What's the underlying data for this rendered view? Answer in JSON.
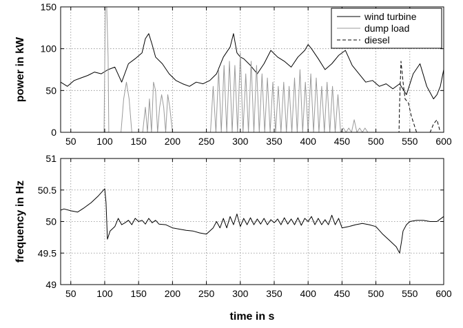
{
  "chart_data": [
    {
      "type": "line",
      "ylabel": "power in kW",
      "xlim": [
        35,
        600
      ],
      "ylim": [
        0,
        150
      ],
      "xticks": [
        50,
        100,
        150,
        200,
        250,
        300,
        350,
        400,
        450,
        500,
        550,
        600
      ],
      "yticks": [
        "0",
        "50",
        "100",
        "150"
      ],
      "grid": true,
      "legend": "top-right",
      "series": [
        {
          "name": "wind turbine",
          "color": "#000000",
          "style": "solid",
          "x": [
            35,
            45,
            55,
            65,
            75,
            85,
            95,
            105,
            115,
            125,
            135,
            145,
            155,
            160,
            165,
            170,
            175,
            185,
            195,
            205,
            215,
            225,
            235,
            245,
            255,
            265,
            275,
            285,
            290,
            295,
            300,
            305,
            315,
            325,
            335,
            345,
            355,
            365,
            375,
            385,
            395,
            400,
            405,
            415,
            425,
            435,
            445,
            455,
            465,
            475,
            485,
            495,
            505,
            515,
            525,
            535,
            545,
            555,
            565,
            575,
            585,
            590,
            595,
            600
          ],
          "y": [
            60,
            55,
            62,
            65,
            68,
            72,
            70,
            75,
            78,
            60,
            82,
            88,
            95,
            112,
            118,
            105,
            90,
            82,
            70,
            62,
            58,
            55,
            60,
            58,
            62,
            70,
            90,
            102,
            118,
            95,
            90,
            88,
            80,
            70,
            82,
            98,
            90,
            85,
            78,
            90,
            98,
            105,
            100,
            88,
            75,
            82,
            92,
            98,
            80,
            70,
            60,
            62,
            55,
            58,
            52,
            58,
            45,
            70,
            82,
            55,
            40,
            45,
            55,
            75
          ]
        },
        {
          "name": "dump load",
          "color": "#999999",
          "style": "solid",
          "x": [
            35,
            99,
            101,
            103,
            105,
            106,
            108,
            120,
            124,
            128,
            132,
            136,
            140,
            148,
            150,
            156,
            160,
            163,
            166,
            169,
            172,
            175,
            178,
            181,
            184,
            187,
            190,
            193,
            196,
            200,
            210,
            256,
            260,
            264,
            268,
            272,
            276,
            280,
            284,
            288,
            292,
            296,
            300,
            304,
            308,
            312,
            316,
            320,
            324,
            328,
            332,
            336,
            340,
            344,
            348,
            352,
            356,
            360,
            364,
            368,
            372,
            376,
            380,
            384,
            388,
            392,
            396,
            400,
            404,
            408,
            412,
            416,
            420,
            424,
            428,
            432,
            436,
            440,
            444,
            448,
            452,
            456,
            460,
            464,
            468,
            472,
            476,
            480,
            484,
            488,
            492,
            600
          ],
          "y": [
            0,
            0,
            150,
            150,
            90,
            0,
            0,
            0,
            0,
            40,
            60,
            40,
            0,
            0,
            0,
            0,
            30,
            0,
            40,
            0,
            60,
            50,
            0,
            30,
            45,
            30,
            0,
            45,
            30,
            0,
            0,
            0,
            55,
            0,
            75,
            0,
            80,
            0,
            85,
            0,
            80,
            0,
            95,
            0,
            70,
            0,
            85,
            0,
            80,
            0,
            70,
            0,
            65,
            0,
            60,
            0,
            55,
            0,
            60,
            0,
            55,
            0,
            65,
            0,
            75,
            0,
            60,
            0,
            70,
            0,
            65,
            0,
            55,
            0,
            60,
            0,
            55,
            0,
            45,
            0,
            5,
            0,
            5,
            0,
            15,
            0,
            5,
            0,
            5,
            0,
            0,
            0
          ]
        },
        {
          "name": "diesel",
          "color": "#000000",
          "style": "dashed",
          "x": [
            35,
            534,
            535,
            537,
            540,
            543,
            548,
            552,
            556,
            560,
            565,
            570,
            575,
            580,
            585,
            590,
            595,
            600
          ],
          "y": [
            0,
            0,
            35,
            85,
            60,
            40,
            35,
            20,
            10,
            0,
            0,
            0,
            0,
            0,
            10,
            15,
            0,
            0
          ]
        }
      ]
    },
    {
      "type": "line",
      "xlabel": "time in s",
      "ylabel": "frequency in Hz",
      "xlim": [
        35,
        600
      ],
      "ylim": [
        49,
        51
      ],
      "xticks": [
        50,
        100,
        150,
        200,
        250,
        300,
        350,
        400,
        450,
        500,
        550,
        600
      ],
      "yticks": [
        "49",
        "49.5",
        "50",
        "50.5",
        "51"
      ],
      "grid": true,
      "series": [
        {
          "color": "#000000",
          "style": "solid",
          "x": [
            35,
            40,
            50,
            60,
            70,
            80,
            90,
            100,
            102,
            104,
            108,
            115,
            120,
            125,
            130,
            135,
            140,
            145,
            150,
            155,
            160,
            165,
            170,
            175,
            180,
            190,
            200,
            210,
            220,
            230,
            240,
            250,
            255,
            260,
            265,
            270,
            275,
            280,
            285,
            290,
            295,
            300,
            305,
            310,
            315,
            320,
            325,
            330,
            335,
            340,
            345,
            350,
            355,
            360,
            365,
            370,
            375,
            380,
            385,
            390,
            395,
            400,
            405,
            410,
            415,
            420,
            425,
            430,
            435,
            440,
            445,
            450,
            460,
            470,
            480,
            490,
            500,
            510,
            520,
            530,
            535,
            538,
            540,
            545,
            550,
            560,
            570,
            580,
            590,
            600
          ],
          "y": [
            50.18,
            50.2,
            50.17,
            50.15,
            50.22,
            50.3,
            50.4,
            50.52,
            50.3,
            49.72,
            49.85,
            49.92,
            50.05,
            49.95,
            49.98,
            50.02,
            49.95,
            50.05,
            50.0,
            50.02,
            49.96,
            50.05,
            49.98,
            50.02,
            49.96,
            49.95,
            49.9,
            49.88,
            49.86,
            49.85,
            49.82,
            49.8,
            49.85,
            49.9,
            50.0,
            49.9,
            50.05,
            49.9,
            50.08,
            49.95,
            50.12,
            49.92,
            50.05,
            49.95,
            50.06,
            49.95,
            50.04,
            49.96,
            50.05,
            49.95,
            50.03,
            49.98,
            50.04,
            49.95,
            50.06,
            49.96,
            50.04,
            49.95,
            50.06,
            49.94,
            50.05,
            50.0,
            50.08,
            49.95,
            50.05,
            49.95,
            50.03,
            49.95,
            50.1,
            49.95,
            50.05,
            49.9,
            49.92,
            49.95,
            49.97,
            49.95,
            49.92,
            49.8,
            49.7,
            49.6,
            49.5,
            49.7,
            49.85,
            49.95,
            50.0,
            50.02,
            50.02,
            50.0,
            50.0,
            50.08
          ]
        }
      ]
    }
  ]
}
